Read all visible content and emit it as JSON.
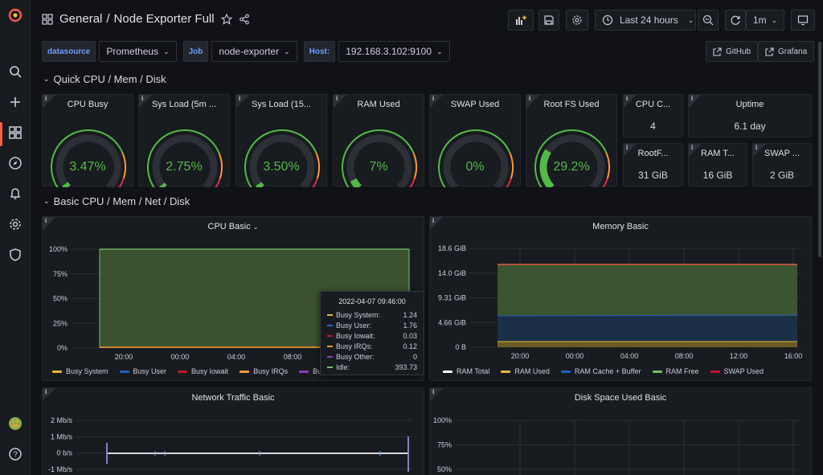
{
  "sidebar": {
    "items": [
      "grafana-logo",
      "search",
      "new",
      "dashboards",
      "explore",
      "alerting",
      "configuration",
      "server-admin"
    ],
    "help": "?"
  },
  "header": {
    "breadcrumb_folder": "General",
    "breadcrumb_sep": "/",
    "dashboard_title": "Node Exporter Full",
    "time_range": "Last 24 hours",
    "refresh_interval": "1m"
  },
  "variables": [
    {
      "label": "datasource",
      "value": "Prometheus"
    },
    {
      "label": "Job",
      "value": "node-exporter"
    },
    {
      "label": "Host:",
      "value": "192.168.3.102:9100"
    }
  ],
  "links": [
    {
      "label": "GitHub"
    },
    {
      "label": "Grafana"
    }
  ],
  "rows": [
    {
      "title": "Quick CPU / Mem / Disk"
    },
    {
      "title": "Basic CPU / Mem / Net / Disk"
    }
  ],
  "gauges": [
    {
      "title": "CPU Busy",
      "value": "3.47%",
      "pct": 3.47
    },
    {
      "title": "Sys Load (5m ...",
      "value": "2.75%",
      "pct": 2.75
    },
    {
      "title": "Sys Load (15...",
      "value": "3.50%",
      "pct": 3.5
    },
    {
      "title": "RAM Used",
      "value": "7%",
      "pct": 7
    },
    {
      "title": "SWAP Used",
      "value": "0%",
      "pct": 0
    },
    {
      "title": "Root FS Used",
      "value": "29.2%",
      "pct": 29.2
    }
  ],
  "stats": [
    {
      "title": "CPU C...",
      "value": "4"
    },
    {
      "title": "Uptime",
      "value": "6.1 day"
    },
    {
      "title": "RootF...",
      "value": "31 GiB"
    },
    {
      "title": "RAM T...",
      "value": "16 GiB"
    },
    {
      "title": "SWAP ...",
      "value": "2 GiB"
    }
  ],
  "cpu_basic": {
    "title": "CPU Basic",
    "y_ticks": [
      "100%",
      "75%",
      "50%",
      "25%",
      "0%"
    ],
    "x_ticks": [
      "20:00",
      "00:00",
      "04:00",
      "08:00"
    ],
    "legend": [
      {
        "name": "Busy System",
        "color": "#eab839"
      },
      {
        "name": "Busy User",
        "color": "#1f60c4"
      },
      {
        "name": "Busy Iowait",
        "color": "#c4162a"
      },
      {
        "name": "Busy IRQs",
        "color": "#ff9830"
      },
      {
        "name": "Busy Other",
        "color": "#8f3bb8"
      }
    ],
    "legend_truncated": "Bus",
    "tooltip": {
      "time": "2022-04-07 09:46:00",
      "rows": [
        {
          "name": "Busy System:",
          "value": "1.24",
          "color": "#eab839"
        },
        {
          "name": "Busy User:",
          "value": "1.76",
          "color": "#1f60c4"
        },
        {
          "name": "Busy Iowait:",
          "value": "0.03",
          "color": "#c4162a"
        },
        {
          "name": "Busy IRQs:",
          "value": "0.12",
          "color": "#ff9830"
        },
        {
          "name": "Busy Other:",
          "value": "0",
          "color": "#8f3bb8"
        },
        {
          "name": "Idle:",
          "value": "393.73",
          "color": "#73bf69"
        }
      ]
    }
  },
  "memory_basic": {
    "title": "Memory Basic",
    "y_ticks": [
      "18.6 GiB",
      "14.0 GiB",
      "9.31 GiB",
      "4.66 GiB",
      "0 B"
    ],
    "x_ticks": [
      "20:00",
      "00:00",
      "04:00",
      "08:00",
      "12:00",
      "16:00"
    ],
    "legend": [
      {
        "name": "RAM Total",
        "color": "#ffffff"
      },
      {
        "name": "RAM Used",
        "color": "#eab839"
      },
      {
        "name": "RAM Cache + Buffer",
        "color": "#1f60c4"
      },
      {
        "name": "RAM Free",
        "color": "#73bf69"
      },
      {
        "name": "SWAP Used",
        "color": "#c4162a"
      }
    ]
  },
  "network_basic": {
    "title": "Network Traffic Basic",
    "y_ticks": [
      "2 Mb/s",
      "1 Mb/s",
      "0 b/s",
      "-1 Mb/s"
    ]
  },
  "disk_basic": {
    "title": "Disk Space Used Basic",
    "y_ticks": [
      "100%",
      "75%",
      "50%"
    ]
  },
  "colors": {
    "accent": "#f55f3e",
    "green": "#53b948",
    "orange": "#ff9830",
    "red": "#e02f44",
    "link": "#6e9fff"
  }
}
